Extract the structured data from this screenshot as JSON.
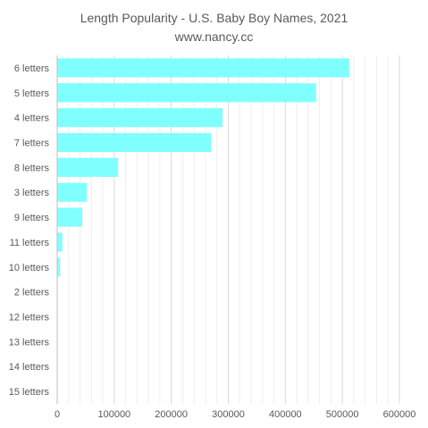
{
  "chart_data": {
    "type": "bar",
    "orientation": "horizontal",
    "title": "Length Popularity - U.S. Baby Boy Names, 2021",
    "subtitle": "www.nancy.cc",
    "categories": [
      "6 letters",
      "5 letters",
      "4 letters",
      "7 letters",
      "8 letters",
      "3 letters",
      "9 letters",
      "11 letters",
      "10 letters",
      "2 letters",
      "12 letters",
      "13 letters",
      "14 letters",
      "15 letters"
    ],
    "values": [
      512000,
      454000,
      290000,
      270000,
      107000,
      52000,
      44000,
      9000,
      5000,
      400,
      200,
      100,
      50,
      30
    ],
    "xlim": [
      0,
      600000
    ],
    "xticks": [
      0,
      100000,
      200000,
      300000,
      400000,
      500000,
      600000
    ],
    "xtick_labels": [
      "0",
      "100000",
      "200000",
      "300000",
      "400000",
      "500000",
      "600000"
    ],
    "grid": true,
    "legend": "none",
    "bar_color": "#80FFFF",
    "grid_major_color": "#D9D9D9",
    "grid_minor_color": "#EEEEEE"
  }
}
